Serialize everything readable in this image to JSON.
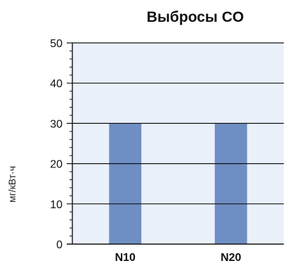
{
  "chart_data": {
    "type": "bar",
    "title": "Выбросы CO",
    "xlabel": "",
    "ylabel": "мг/кВт·ч",
    "categories": [
      "N10",
      "N20"
    ],
    "values": [
      30,
      30
    ],
    "ylim": [
      0,
      50
    ],
    "yticks": [
      "0",
      "10",
      "20",
      "30",
      "40",
      "50"
    ],
    "grid": true,
    "legend": "none",
    "colors": {
      "bar": "#6f8fc4",
      "plot_background": "#eaf1fb",
      "grid": "#111111",
      "axis": "#111111"
    }
  }
}
